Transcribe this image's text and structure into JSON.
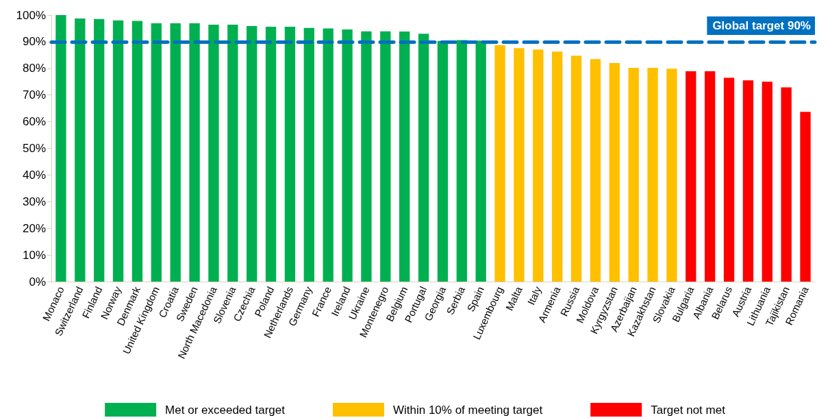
{
  "chart_data": {
    "type": "bar",
    "stacked": true,
    "categories": [
      "Monaco",
      "Switzerland",
      "Finland",
      "Norway",
      "Denmark",
      "United Kingdom",
      "Croatia",
      "Sweden",
      "North Macedonia",
      "Slovenia",
      "Czechia",
      "Poland",
      "Netherlands",
      "Germany",
      "France",
      "Ireland",
      "Ukraine",
      "Montenegro",
      "Belgium",
      "Portugal",
      "Georgia",
      "Serbia",
      "Spain",
      "Luxembourg",
      "Malta",
      "Italy",
      "Armenia",
      "Russia",
      "Moldova",
      "Kyrgyzstan",
      "Azerbaijan",
      "Kazakhstan",
      "Slovakia",
      "Bulgaria",
      "Albania",
      "Belarus",
      "Austria",
      "Lithuania",
      "Tajikistan",
      "Romania"
    ],
    "series": [
      {
        "name": "Met or exceeded target",
        "color": "#00b050",
        "values": [
          100,
          98.7,
          98.5,
          98,
          97.8,
          96.9,
          96.9,
          96.9,
          96.4,
          96.4,
          95.9,
          95.6,
          95.6,
          95.2,
          95,
          94.6,
          93.9,
          93.9,
          93.8,
          93,
          90.3,
          90.6,
          90.4,
          null,
          null,
          null,
          null,
          null,
          null,
          null,
          null,
          null,
          null,
          null,
          null,
          null,
          null,
          null,
          null,
          null
        ]
      },
      {
        "name": "Within 10% of meeting target",
        "color": "#ffc000",
        "values": [
          null,
          null,
          null,
          null,
          null,
          null,
          null,
          null,
          null,
          null,
          null,
          null,
          null,
          null,
          null,
          null,
          null,
          null,
          null,
          null,
          null,
          null,
          null,
          88.7,
          87.6,
          87.1,
          86.3,
          84.8,
          83.5,
          82,
          80.2,
          80.2,
          79.9,
          null,
          null,
          null,
          null,
          null,
          null,
          null
        ]
      },
      {
        "name": "Target not met",
        "color": "#ff0000",
        "values": [
          null,
          null,
          null,
          null,
          null,
          null,
          null,
          null,
          null,
          null,
          null,
          null,
          null,
          null,
          null,
          null,
          null,
          null,
          null,
          null,
          null,
          null,
          null,
          null,
          null,
          null,
          null,
          null,
          null,
          null,
          null,
          null,
          null,
          78.9,
          78.9,
          76.5,
          75.5,
          75,
          72.9,
          63.7
        ]
      }
    ],
    "ylim": [
      0,
      100
    ],
    "yticks": [
      {
        "value": 0,
        "label": "0%"
      },
      {
        "value": 10,
        "label": "10%"
      },
      {
        "value": 20,
        "label": "20%"
      },
      {
        "value": 30,
        "label": "30%"
      },
      {
        "value": 40,
        "label": "40%"
      },
      {
        "value": 50,
        "label": "50%"
      },
      {
        "value": 60,
        "label": "60%"
      },
      {
        "value": 70,
        "label": "70%"
      },
      {
        "value": 80,
        "label": "80%"
      },
      {
        "value": 90,
        "label": "90%"
      },
      {
        "value": 100,
        "label": "100%"
      }
    ],
    "ref_lines": [
      {
        "axis": "y",
        "value": 90,
        "label": "Global target 90%",
        "color": "#0070c0",
        "line_style": "dashed"
      }
    ],
    "grid": false,
    "legend": "bottom"
  }
}
